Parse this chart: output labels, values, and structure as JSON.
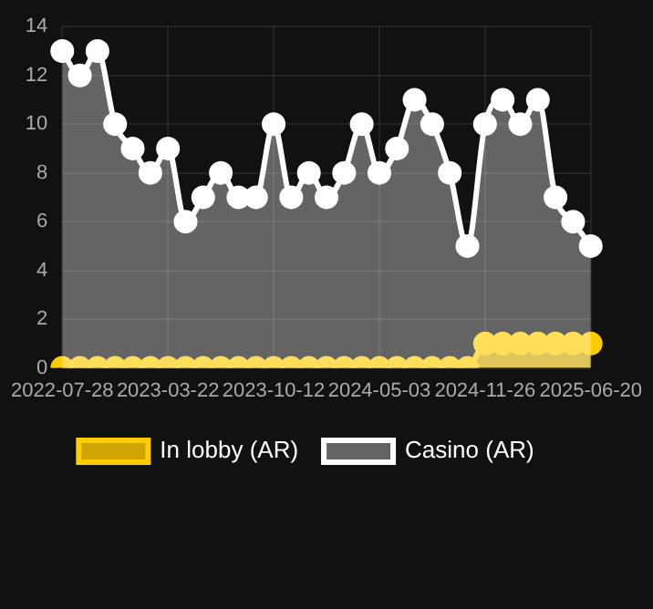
{
  "chart_data": {
    "type": "area",
    "categories": [
      "2022-07-28",
      null,
      null,
      null,
      null,
      null,
      "2023-03-22",
      null,
      null,
      null,
      null,
      null,
      "2023-10-12",
      null,
      null,
      null,
      null,
      null,
      "2024-05-03",
      null,
      null,
      null,
      null,
      null,
      "2024-11-26",
      null,
      null,
      null,
      null,
      null,
      "2025-06-20"
    ],
    "series": [
      {
        "name": "In lobby (AR)",
        "color": "#ffcc00",
        "values": [
          0,
          0,
          0,
          0,
          0,
          0,
          0,
          0,
          0,
          0,
          0,
          0,
          0,
          0,
          0,
          0,
          0,
          0,
          0,
          0,
          0,
          0,
          0,
          0,
          1,
          1,
          1,
          1,
          1,
          1,
          1
        ]
      },
      {
        "name": "Casino (AR)",
        "color": "#ffffff",
        "values": [
          13,
          12,
          13,
          10,
          9,
          8,
          9,
          6,
          7,
          8,
          7,
          7,
          10,
          7,
          8,
          7,
          8,
          10,
          8,
          9,
          11,
          10,
          8,
          5,
          10,
          11,
          10,
          11,
          7,
          6,
          5
        ]
      }
    ],
    "ylim": [
      0,
      14
    ],
    "yticks": [
      0,
      2,
      4,
      6,
      8,
      10,
      12,
      14
    ],
    "grid": true,
    "legend": "bottom",
    "marker": "circle"
  }
}
